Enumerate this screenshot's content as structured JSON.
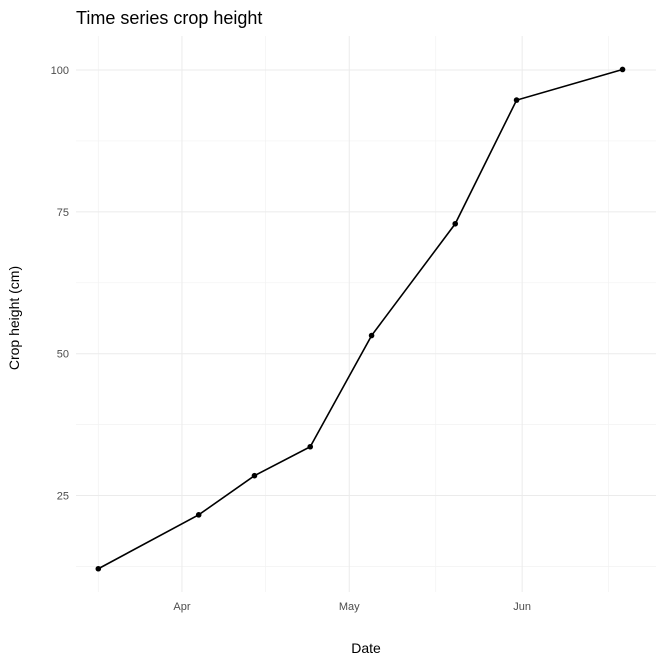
{
  "chart_data": {
    "type": "line",
    "title": "Time series crop height",
    "xlabel": "Date",
    "ylabel": "Crop height (cm)",
    "x_tick_labels": [
      "Apr",
      "May",
      "Jun"
    ],
    "y_tick_labels": [
      "25",
      "50",
      "75",
      "100"
    ],
    "x": [
      "2023-03-17",
      "2023-04-04",
      "2023-04-14",
      "2023-04-24",
      "2023-05-05",
      "2023-05-20",
      "2023-05-31",
      "2023-06-19"
    ],
    "values": [
      12.1,
      21.6,
      28.5,
      33.6,
      53.2,
      72.9,
      94.7,
      100.1
    ],
    "xlim": [
      "2023-03-13",
      "2023-06-25"
    ],
    "ylim": [
      8,
      106
    ],
    "grid": true,
    "legend": "none"
  },
  "colors": {
    "background": "#ffffff",
    "grid": "#ebebeb",
    "line": "#000000"
  }
}
